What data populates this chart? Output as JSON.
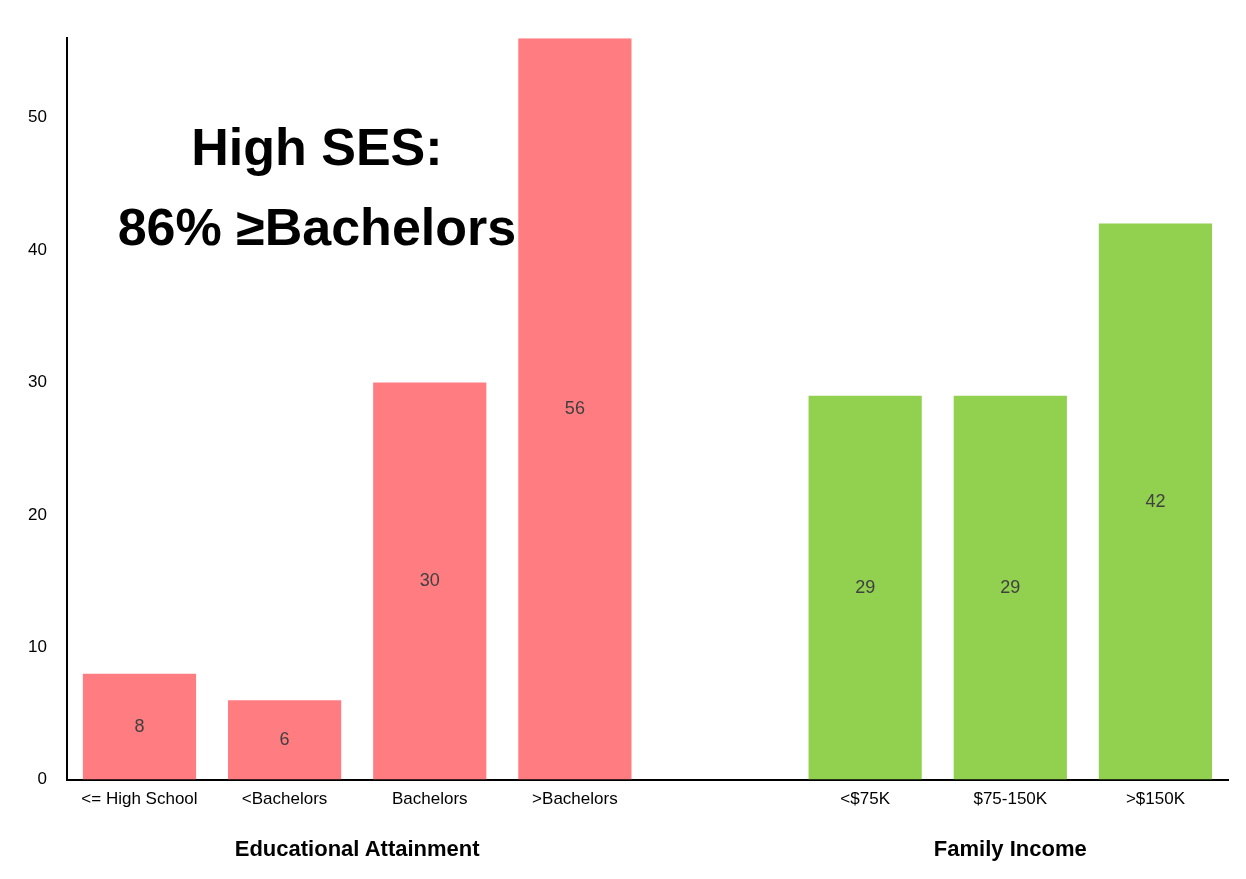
{
  "chart_data": {
    "type": "bar",
    "title": "High SES:\n86% ≥Bachelors",
    "categories": [
      "<= High School",
      "<Bachelors",
      "Bachelors",
      ">Bachelors",
      null,
      "<$75K",
      "$75-150K",
      ">$150K"
    ],
    "values": [
      8,
      6,
      30,
      56,
      null,
      29,
      29,
      42
    ],
    "colors": [
      "#ff7c80",
      "#ff7c80",
      "#ff7c80",
      "#ff7c80",
      null,
      "#92d050",
      "#92d050",
      "#92d050"
    ],
    "ylim": [
      0,
      56
    ],
    "yticks": [
      0,
      10,
      20,
      30,
      40,
      50
    ],
    "annotations": [
      "Educational Attainment",
      "Family Income"
    ],
    "data_labels": true,
    "grid": false,
    "legend": false
  }
}
